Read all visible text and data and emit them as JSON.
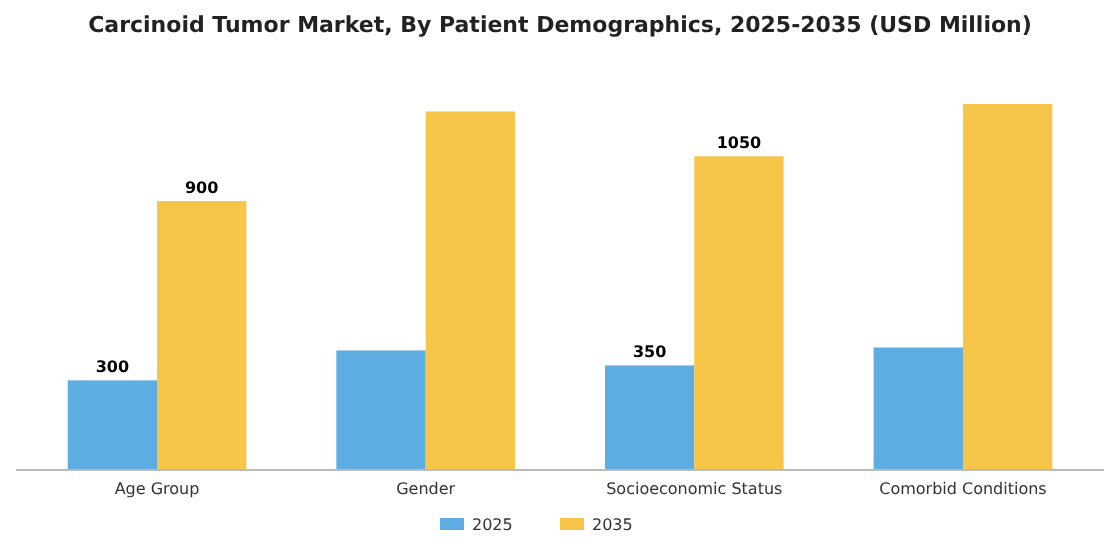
{
  "chart_data": {
    "type": "bar",
    "title": "Carcinoid Tumor Market, By Patient Demographics, 2025-2035 (USD Million)",
    "categories": [
      "Age Group",
      "Gender",
      "Socioeconomic Status",
      "Comorbid Conditions"
    ],
    "series": [
      {
        "name": "2025",
        "color": "#5dade2",
        "values": [
          300,
          400,
          350,
          410
        ],
        "value_labels": [
          "300",
          null,
          "350",
          null
        ]
      },
      {
        "name": "2035",
        "color": "#f7c548",
        "values": [
          900,
          1200,
          1050,
          1225
        ],
        "value_labels": [
          "900",
          null,
          "1050",
          null
        ]
      }
    ],
    "legend": "bottom",
    "grid": false
  }
}
